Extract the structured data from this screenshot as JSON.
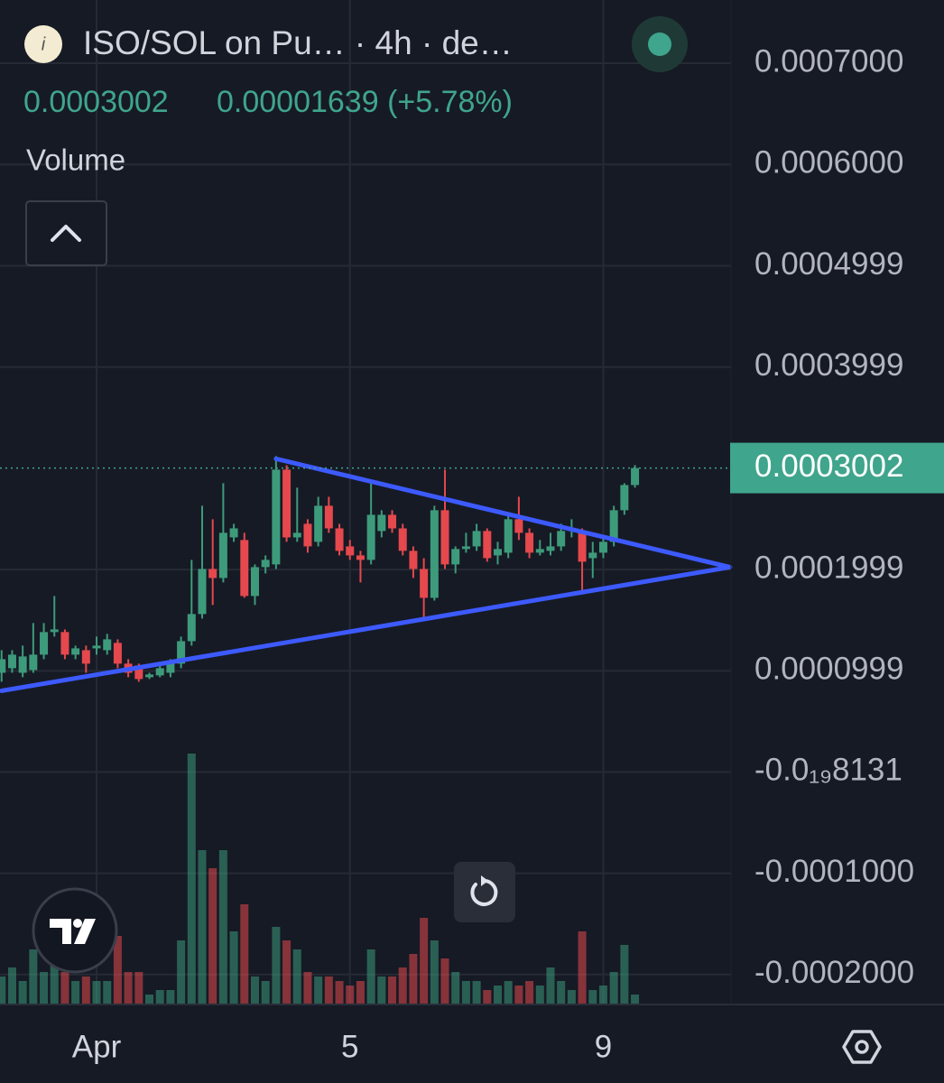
{
  "chart_data": {
    "type": "candlestick",
    "title": "ISO/SOL on Pu…  · 4h · de…",
    "change": "0.00001639 (+5.78%)",
    "volume_label": "Volume",
    "categories": [
      null,
      null,
      null,
      null,
      null,
      null,
      null,
      null,
      null,
      "Apr",
      null,
      null,
      null,
      null,
      null,
      null,
      null,
      null,
      null,
      null,
      null,
      null,
      null,
      null,
      null,
      null,
      null,
      null,
      null,
      null,
      null,
      null,
      null,
      "5",
      null,
      null,
      null,
      null,
      null,
      null,
      null,
      null,
      null,
      null,
      null,
      null,
      null,
      null,
      null,
      null,
      null,
      null,
      null,
      null,
      null,
      null,
      null,
      "9",
      null,
      null,
      null
    ],
    "open": [
      9.8e-05,
      0.0001025,
      9.8e-05,
      0.0001007,
      0.0001159,
      0.0001382,
      0.0001382,
      0.0001159,
      0.0001203,
      0.0001221,
      0.0001203,
      0.0001275,
      0.000107,
      0.0001052,
      9.36e-05,
      9.54e-05,
      9.8e-05,
      0.000107,
      0.0001292,
      0.000156,
      0.0002005,
      0.0001916,
      0.0002317,
      0.0002291,
      0.0001738,
      0.0002023,
      0.000205,
      0.0002986,
      0.0002317,
      0.0002451,
      0.0002273,
      0.0002629,
      0.0002406,
      0.0002228,
      0.0002139,
      0.0002095,
      0.000238,
      0.000254,
      0.0002406,
      0.0002184,
      0.0002005,
      0.000172,
      0.0002585,
      0.000205,
      0.0002202,
      0.0002228,
      0.000238,
      0.0002139,
      0.0002166,
      0.0002496,
      0.0002362,
      0.0002166,
      0.0002184,
      0.0002228,
      0.000238,
      0.000238,
      0.0002112,
      0.0002166,
      0.0002273,
      0.0002585,
      0.0002834
    ],
    "high": [
      0.0001203,
      0.0001203,
      0.0001248,
      0.0001471,
      0.0001471,
      0.0001738,
      0.0001408,
      0.0001248,
      0.0001248,
      0.0001337,
      0.0001364,
      0.000131,
      0.0001114,
      0.000107,
      9.8e-05,
      0.000107,
      0.0001114,
      0.0001337,
      0.0002095,
      0.0002629,
      0.0002496,
      0.0002852,
      0.0002451,
      0.0002362,
      0.000205,
      0.0002139,
      0.000312,
      0.000303,
      0.0002808,
      0.0002496,
      0.0002718,
      0.0002718,
      0.0002451,
      0.0002291,
      0.0002184,
      0.0002852,
      0.0002585,
      0.0002585,
      0.0002451,
      0.0002228,
      0.0002112,
      0.0002629,
      0.0002986,
      0.0002228,
      0.0002362,
      0.0002451,
      0.0002406,
      0.0002273,
      0.000254,
      0.0002718,
      0.0002406,
      0.0002291,
      0.0002362,
      0.0002451,
      0.0002496,
      0.0002406,
      0.0002273,
      0.0002317,
      0.0002629,
      0.0002852,
      0.000303
    ],
    "low": [
      8.91e-05,
      9.8e-05,
      9.36e-05,
      9.8e-05,
      0.0001114,
      0.0001337,
      0.0001114,
      0.0001114,
      9.8e-05,
      0.0001159,
      0.0001159,
      0.0001025,
      9.36e-05,
      8.91e-05,
      9.18e-05,
      9.36e-05,
      9.36e-05,
      0.0001025,
      0.0001248,
      0.0001515,
      0.0001649,
      0.0001872,
      0.0002273,
      0.000172,
      0.0001649,
      0.0001961,
      0.0002005,
      0.0002273,
      0.0002273,
      0.0002166,
      0.0002228,
      0.0002362,
      0.0002139,
      0.0002095,
      0.0001872,
      0.000205,
      0.0002317,
      0.0002362,
      0.0002139,
      0.0001916,
      0.0001515,
      0.0001693,
      0.0002005,
      0.0001961,
      0.0002166,
      0.0002184,
      0.0002077,
      0.000205,
      0.0002112,
      0.0002291,
      0.0002112,
      0.0002139,
      0.0002139,
      0.0002184,
      0.0002317,
      0.0001783,
      0.0001916,
      0.0002112,
      0.0002228,
      0.000254,
      0.0002808
    ],
    "close": [
      0.0001114,
      0.0001159,
      0.0001141,
      0.0001159,
      0.0001382,
      0.0001408,
      0.0001159,
      0.0001221,
      0.000107,
      0.0001248,
      0.000131,
      0.000107,
      9.8e-05,
      9.18e-05,
      9.63e-05,
      0.0001025,
      0.000107,
      0.0001292,
      0.000156,
      0.0002005,
      0.0001916,
      0.0002362,
      0.0002406,
      0.0001738,
      0.0002023,
      0.0002095,
      0.0002986,
      0.0002317,
      0.0002362,
      0.0002228,
      0.0002629,
      0.0002406,
      0.0002184,
      0.0002139,
      0.0002095,
      0.000254,
      0.000254,
      0.0002406,
      0.0002184,
      0.0002005,
      0.000172,
      0.0002585,
      0.000205,
      0.0002202,
      0.0002228,
      0.000238,
      0.0002112,
      0.0002202,
      0.0002496,
      0.0002362,
      0.0002166,
      0.0002202,
      0.0002228,
      0.000238,
      0.0002406,
      0.0002077,
      0.0002166,
      0.0002273,
      0.0002585,
      0.0002834,
      0.0003002
    ],
    "volume": [
      30,
      40,
      25,
      60,
      35,
      50,
      35,
      25,
      30,
      25,
      25,
      75,
      35,
      35,
      10,
      15,
      15,
      70,
      277,
      170,
      150,
      170,
      80,
      110,
      30,
      25,
      85,
      70,
      60,
      35,
      30,
      30,
      25,
      20,
      25,
      60,
      30,
      30,
      40,
      55,
      95,
      70,
      50,
      35,
      25,
      25,
      15,
      20,
      25,
      20,
      25,
      20,
      40,
      25,
      15,
      80,
      15,
      20,
      35,
      65,
      10
    ],
    "up_color": "#3d9b7b",
    "down_color": "#e5484d",
    "xlim": [
      -0.15,
      69.1
    ],
    "ylim": [
      -0.0002287,
      0.0007624
    ],
    "yticks": [
      {
        "value": 0.0007,
        "label": "0.0007000"
      },
      {
        "value": 0.0006,
        "label": "0.0006000"
      },
      {
        "value": 0.0004999,
        "label": "0.0004999"
      },
      {
        "value": 0.0003999,
        "label": "0.0003999"
      },
      {
        "value": 0.0001999,
        "label": "0.0001999"
      },
      {
        "value": 9.99e-05,
        "label": "0.0000999"
      },
      {
        "value": -8.131e-20,
        "label": "-0.0₁₉8131"
      },
      {
        "value": -0.0001,
        "label": "-0.0001000"
      },
      {
        "value": -0.0002,
        "label": "-0.0002000"
      }
    ],
    "grid": true,
    "last_price": {
      "value": 0.0003002,
      "label": "0.0003002"
    },
    "trendline_color": "#3d5afe",
    "trendlines": [
      {
        "x": [
          26,
          69
        ],
        "y": [
          0.0003093,
          0.0002023
        ]
      },
      {
        "x": [
          0,
          69
        ],
        "y": [
          8.02e-05,
          0.0002023
        ]
      }
    ]
  }
}
